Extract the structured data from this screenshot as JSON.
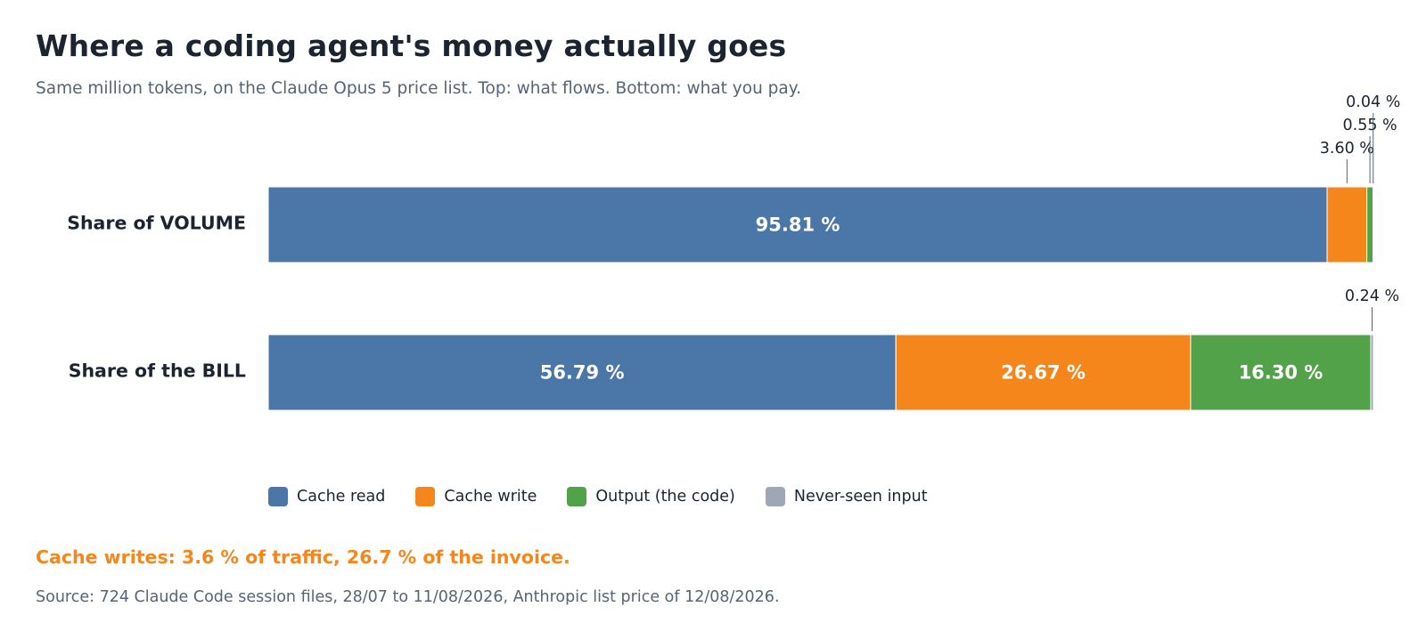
{
  "title": "Where a coding agent's money actually goes",
  "subtitle": "Same million tokens, on the Claude Opus 5 price list. Top: what flows. Bottom: what you pay.",
  "headline": "Cache writes: 3.6 % of traffic, 26.7 % of the invoice.",
  "source": "Source: 724 Claude Code session files, 28/07 to 11/08/2026, Anthropic list price of 12/08/2026.",
  "chart_data": {
    "type": "bar",
    "orientation": "horizontal",
    "stacked": true,
    "normalized": true,
    "categories": [
      "Share of VOLUME",
      "Share of the BILL"
    ],
    "series": [
      {
        "name": "Cache read",
        "values": [
          95.81,
          56.79
        ],
        "labels": [
          "95.81 %",
          "56.79 %"
        ],
        "color": "#4a77a8"
      },
      {
        "name": "Cache write",
        "values": [
          3.6,
          26.67
        ],
        "labels": [
          "3.60 %",
          "26.67 %"
        ],
        "color": "#f5861c"
      },
      {
        "name": "Output (the code)",
        "values": [
          0.55,
          16.3
        ],
        "labels": [
          "0.55 %",
          "16.30 %"
        ],
        "color": "#52a24a"
      },
      {
        "name": "Never-seen input",
        "values": [
          0.04,
          0.24
        ],
        "labels": [
          "0.04 %",
          "0.24 %"
        ],
        "color": "#9ea7b3"
      }
    ],
    "xlim": [
      0,
      100
    ],
    "grid": false,
    "legend": "bottom-left"
  }
}
